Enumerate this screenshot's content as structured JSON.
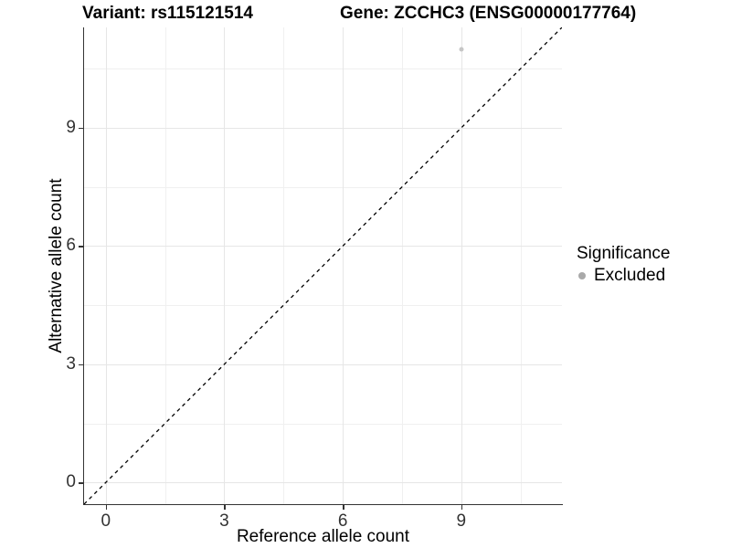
{
  "chart_data": {
    "type": "scatter",
    "title_left": "Variant: rs115121514",
    "title_right": "Gene: ZCCHC3 (ENSG00000177764)",
    "xlabel": "Reference allele count",
    "ylabel": "Alternative allele count",
    "xlim": [
      -0.55,
      11.55
    ],
    "ylim": [
      -0.55,
      11.55
    ],
    "x_major_ticks": [
      0,
      3,
      6,
      9
    ],
    "x_minor_ticks": [
      1.5,
      4.5,
      7.5,
      10.5
    ],
    "y_major_ticks": [
      0,
      3,
      6,
      9
    ],
    "y_minor_ticks": [
      1.5,
      4.5,
      7.5,
      10.5
    ],
    "grid": "on",
    "identity_line": {
      "style": "dashed",
      "x1": -0.55,
      "y1": -0.55,
      "x2": 11.55,
      "y2": 11.55
    },
    "series": [
      {
        "name": "Excluded",
        "color": "#c6c6c6",
        "points": [
          {
            "x": 9,
            "y": 11
          }
        ]
      }
    ],
    "legend": {
      "title": "Significance",
      "position": "right",
      "entries": [
        {
          "label": "Excluded",
          "color": "#a9a9a9"
        }
      ]
    },
    "colors": {
      "grid_major": "#e6e6e6",
      "grid_minor": "#f0f0f0",
      "axis_line": "#333333",
      "tick_label": "#333333",
      "identity_line": "#000000"
    }
  }
}
